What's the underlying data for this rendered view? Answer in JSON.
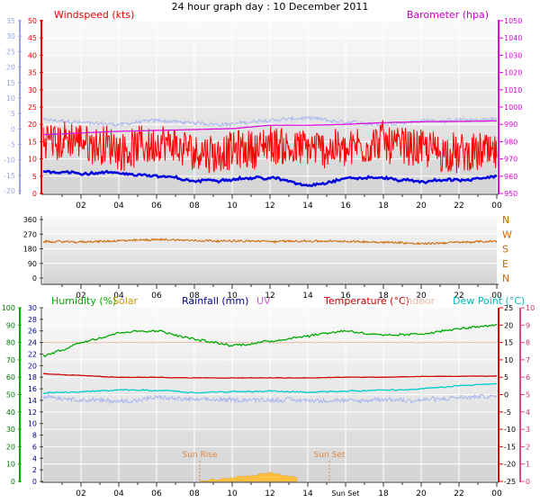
{
  "title": "24 hour graph day : 10 December 2011",
  "colors": {
    "windspeed": "#ff0000",
    "windspeed_avg": "#0000dd",
    "barometer": "#dd00dd",
    "temp_axis_blue": "#9aa6e8",
    "direction": "#cc6600",
    "humidity": "#00aa00",
    "solar": "#cc9900",
    "rainfall": "#000099",
    "uv": "#cc66cc",
    "temperature": "#cc0000",
    "indoor": "#e8b8a8",
    "dew_point": "#00cccc",
    "sun_fill": "#ffc040",
    "sun_label": "#dd8844",
    "green_axis": "#00aa00",
    "pink_axis": "#ee4488",
    "magenta_axis": "#ee00ee"
  },
  "top_chart": {
    "left_label": "Windspeed (kts)",
    "right_label": "Barometer (hpa)",
    "left_ticks": [
      "50",
      "45",
      "40",
      "35",
      "30",
      "25",
      "20",
      "15",
      "10",
      "5",
      "0"
    ],
    "outer_ticks": [
      "35",
      "30",
      "25",
      "20",
      "15",
      "10",
      "5",
      "0",
      "-5",
      "-10",
      "-15",
      "-20"
    ],
    "right_ticks": [
      "1050",
      "1040",
      "1030",
      "1020",
      "1010",
      "1000",
      "990",
      "980",
      "970",
      "960",
      "950"
    ],
    "x_ticks": [
      "02",
      "04",
      "06",
      "08",
      "10",
      "12",
      "14",
      "16",
      "18",
      "20",
      "22",
      "00"
    ]
  },
  "mid_chart": {
    "left_ticks": [
      "360",
      "270",
      "180",
      "90",
      "0"
    ],
    "compass": [
      "N",
      "W",
      "S",
      "E",
      "N"
    ]
  },
  "bottom_chart": {
    "legend": {
      "humidity": "Humidity (%)",
      "solar": "Solar",
      "rainfall": "Rainfall (mm)",
      "uv": "UV",
      "temperature": "Temperature (°C)",
      "indoor": "Indoor",
      "dew_point": "Dew Point (°C)"
    },
    "hum_ticks": [
      "100",
      "90",
      "80",
      "70",
      "60",
      "50",
      "40",
      "30",
      "20",
      "10",
      "0"
    ],
    "rain_ticks": [
      "30",
      "28",
      "26",
      "24",
      "22",
      "20",
      "18",
      "16",
      "14",
      "12",
      "10",
      "8",
      "6",
      "4",
      "2",
      "0"
    ],
    "temp_ticks": [
      "25",
      "20",
      "15",
      "10",
      "5",
      "0",
      "-5",
      "-10",
      "-15",
      "-20",
      "-25"
    ],
    "dew_ticks": [
      "10",
      "9",
      "8",
      "7",
      "6",
      "5",
      "4",
      "3",
      "2",
      "1",
      "0"
    ],
    "x_ticks": [
      "02",
      "04",
      "06",
      "08",
      "10",
      "12",
      "14",
      "Sun Set",
      "18",
      "20",
      "22",
      "00"
    ],
    "sun_rise": "Sun Rise",
    "sun_set": "Sun Set"
  },
  "chart_data": [
    {
      "type": "line",
      "title": "24 hour graph day : 10 December 2011",
      "ylabel": "Windspeed (kts)",
      "y2label": "Barometer (hpa)",
      "x": [
        "00",
        "02",
        "04",
        "06",
        "08",
        "10",
        "12",
        "14",
        "16",
        "18",
        "20",
        "22",
        "00"
      ],
      "ylim": [
        0,
        50
      ],
      "y2lim": [
        950,
        1050
      ],
      "grid": true,
      "series": [
        {
          "name": "Windspeed (kts)",
          "values": [
            16,
            15,
            13,
            14,
            12,
            12,
            14,
            13,
            13,
            15,
            13,
            11,
            12
          ]
        },
        {
          "name": "Windspeed (kts)",
          "values": [
            6.5,
            6,
            6,
            5,
            3.5,
            4.5,
            4.5,
            2.5,
            4.5,
            4.5,
            3.5,
            4,
            4.5
          ]
        },
        {
          "name": "Barometer (hpa)",
          "values": [
            984,
            985,
            986,
            986.5,
            987,
            987.5,
            989.5,
            989.5,
            990,
            991,
            991.5,
            991.7,
            992
          ]
        },
        {
          "values": [
            1.3,
            0.5,
            0,
            1.2,
            0.3,
            0.1,
            1.2,
            1.8,
            0.5,
            0.1,
            1,
            1.2,
            1.5
          ]
        }
      ]
    },
    {
      "type": "line",
      "x": [
        "00",
        "02",
        "04",
        "06",
        "08",
        "10",
        "12",
        "14",
        "16",
        "18",
        "20",
        "22",
        "00"
      ],
      "ylim": [
        0,
        360
      ],
      "series": [
        {
          "values": [
            225,
            222,
            228,
            238,
            232,
            228,
            226,
            228,
            225,
            222,
            212,
            220,
            226
          ]
        }
      ]
    },
    {
      "type": "line",
      "x": [
        "00",
        "02",
        "04",
        "06",
        "08",
        "10",
        "12",
        "14",
        "16",
        "18",
        "20",
        "22",
        "00"
      ],
      "ylim": [
        0,
        100
      ],
      "y2lim": [
        -25,
        25
      ],
      "grid": true,
      "series": [
        {
          "name": "Humidity (%)",
          "values": [
            72,
            80,
            86,
            87,
            82,
            78,
            81,
            84,
            87,
            84,
            85,
            88,
            90
          ]
        },
        {
          "name": "Temperature (°C)",
          "values": [
            6,
            5.5,
            5,
            5,
            4.8,
            4.8,
            4.8,
            4.8,
            5,
            5,
            5.2,
            5.2,
            5.3
          ]
        },
        {
          "name": "Dew Point (°C)",
          "values": [
            0.5,
            0.8,
            1.2,
            1.2,
            0.5,
            0.8,
            1,
            0.8,
            1,
            1.2,
            1.5,
            2.5,
            3
          ]
        },
        {
          "name": "Indoor",
          "values": [
            1.5,
            1.5,
            1.5,
            1.5,
            1.5,
            1.5,
            1.5,
            1.5,
            1.5,
            1.5,
            1.5,
            1.5,
            1.5
          ]
        },
        {
          "name": "Solar",
          "values": [
            0,
            0,
            0,
            0,
            0,
            1,
            2.5,
            0.5,
            0,
            0,
            0,
            0,
            0
          ]
        }
      ]
    }
  ]
}
